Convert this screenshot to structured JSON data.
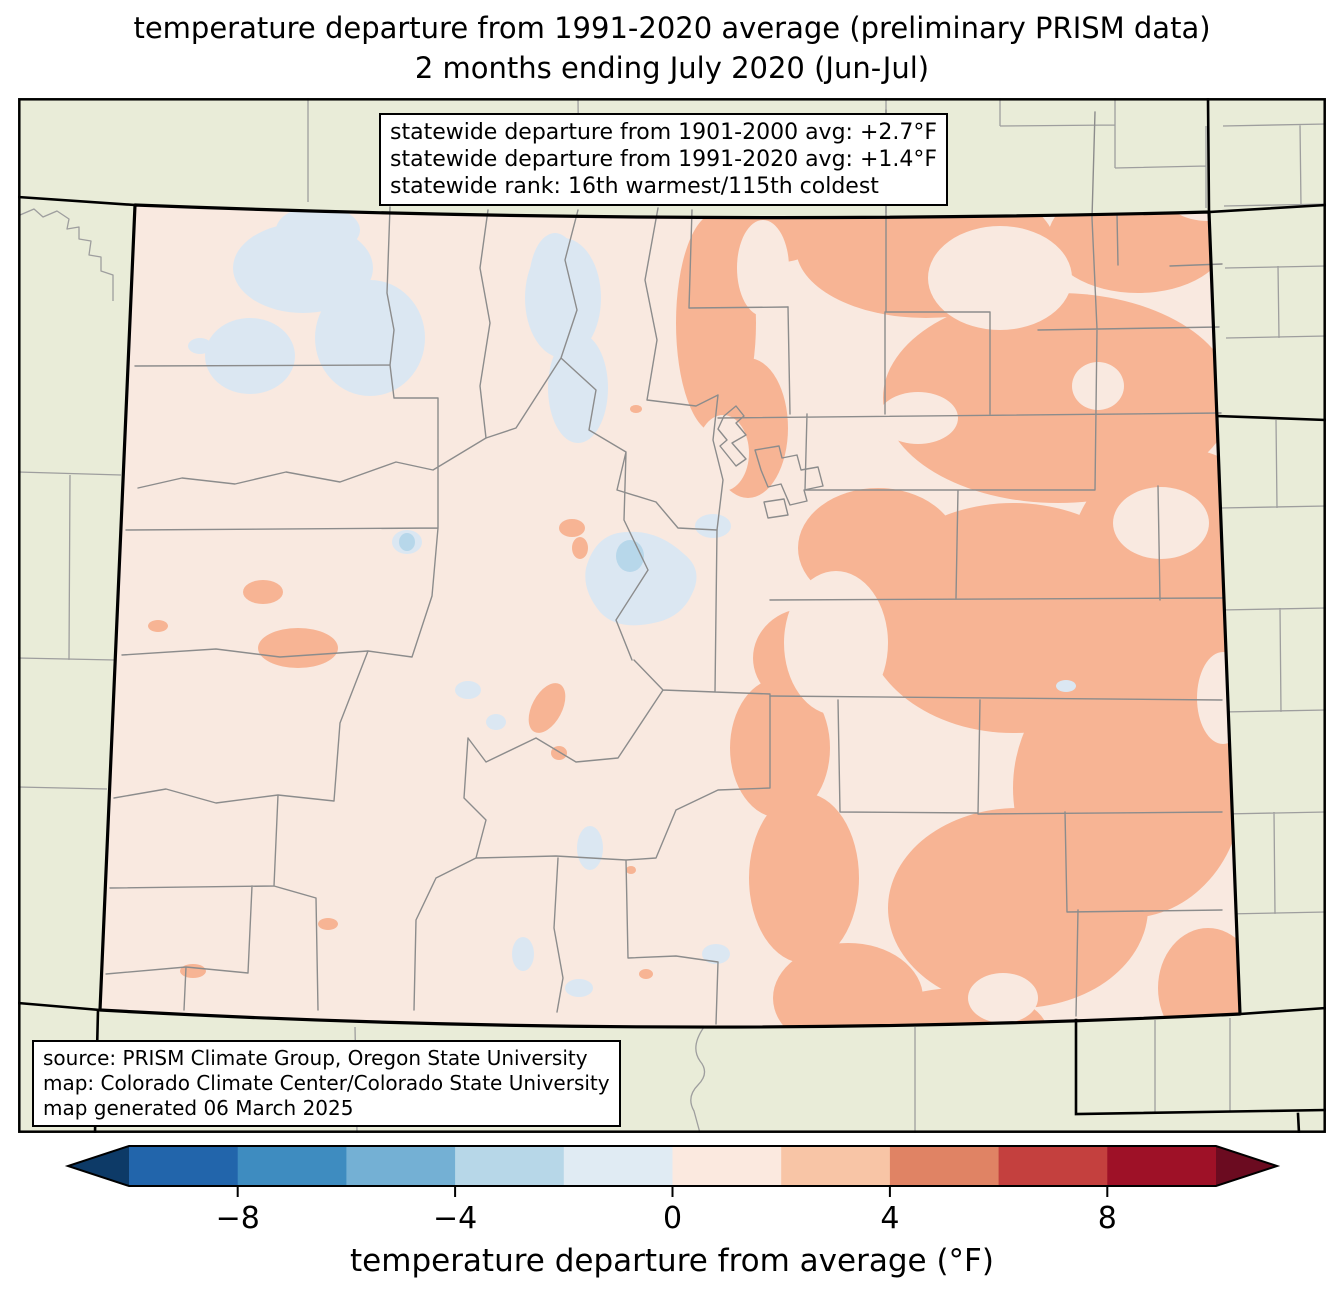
{
  "title": {
    "line1": "temperature departure from 1991-2020 average (preliminary PRISM data)",
    "line2": "2 months ending July 2020 (Jun-Jul)"
  },
  "stats_box": {
    "line1": "statewide departure from 1901-2000 avg: +2.7°F",
    "line2": "statewide departure from 1991-2020 avg: +1.4°F",
    "line3": "statewide rank: 16th warmest/115th coldest"
  },
  "source_box": {
    "line1": "source: PRISM Climate Group, Oregon State University",
    "line2": "map: Colorado Climate Center/Colorado State University",
    "line3": "map generated 06 March 2025"
  },
  "colorbar": {
    "label": "temperature departure from average (°F)",
    "tick_labels": [
      "−8",
      "−4",
      "0",
      "4",
      "8"
    ],
    "tick_values": [
      -8,
      -4,
      0,
      4,
      8
    ],
    "bin_edges": [
      -10,
      -8,
      -6,
      -4,
      -2,
      0,
      2,
      4,
      6,
      8,
      10
    ],
    "segment_colors": [
      "#2265ab",
      "#3e8cc0",
      "#74b0d4",
      "#b7d7e8",
      "#e0ebf3",
      "#fbe9df",
      "#f8c5a6",
      "#e08364",
      "#c4403e",
      "#9e1127"
    ],
    "under_color": "#0d3a67",
    "over_color": "#6b0b20"
  },
  "map": {
    "region": "Colorado",
    "colors": {
      "bg_outside": "#e9ecd8",
      "co_base": "#f9e9e0",
      "warm": "#f7b494",
      "cool": "#dbe7f2",
      "cool_dark": "#b7d7ea",
      "county_line": "#8c8c8c",
      "county_line_outside": "#9e9e9e",
      "border": "#000000"
    }
  },
  "chart_data": {
    "type": "heatmap",
    "title": "temperature departure from 1991-2020 average (preliminary PRISM data)",
    "subtitle": "2 months ending July 2020 (Jun-Jul)",
    "region": "Colorado",
    "variable": "temperature departure from average (°F)",
    "period": "Jun-Jul 2020",
    "statewide_departure_from_1901_2000_avg_F": 2.7,
    "statewide_departure_from_1991_2020_avg_F": 1.4,
    "statewide_rank": "16th warmest/115th coldest",
    "legend": {
      "orientation": "horizontal",
      "position": "bottom",
      "ticks": [
        -8,
        -4,
        0,
        4,
        8
      ],
      "range": [
        -10,
        10
      ],
      "bin_size_F": 2,
      "colors": [
        "#2265ab",
        "#3e8cc0",
        "#74b0d4",
        "#b7d7e8",
        "#e0ebf3",
        "#fbe9df",
        "#f8c5a6",
        "#e08364",
        "#c4403e",
        "#9e1127"
      ],
      "under_color": "#0d3a67",
      "over_color": "#6b0b20"
    }
  }
}
